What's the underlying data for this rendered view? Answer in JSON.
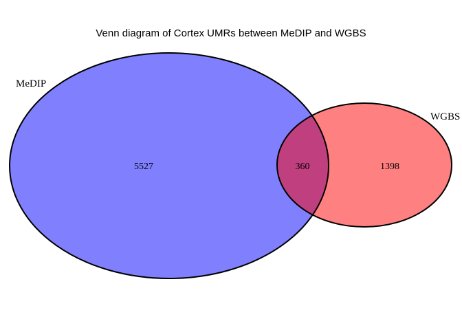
{
  "title": "Venn diagram of Cortex UMRs between MeDIP and WGBS",
  "sets": [
    {
      "name": "MeDIP",
      "color": "#8080ff"
    },
    {
      "name": "WGBS",
      "color": "#ff8080"
    }
  ],
  "overlap_color": "#c0407f",
  "counts": {
    "medip_only": "5527",
    "overlap": "360",
    "wgbs_only": "1398"
  }
}
